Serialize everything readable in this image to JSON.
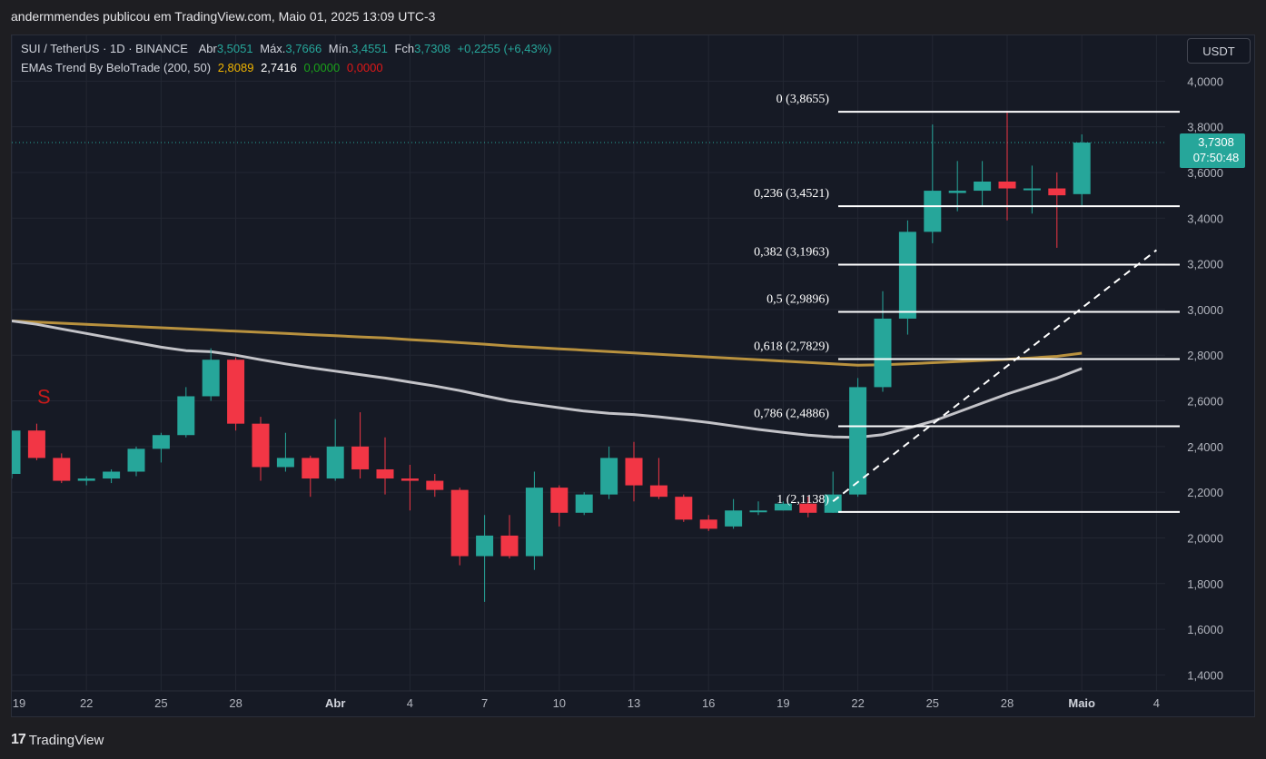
{
  "header": {
    "publish_text": "andermmendes publicou em TradingView.com, Maio 01, 2025 13:09 UTC-3"
  },
  "legend": {
    "symbol": "SUI / TetherUS · 1D · BINANCE",
    "open_label": "Abr",
    "open_value": "3,5051",
    "high_label": "Máx.",
    "high_value": "3,7666",
    "low_label": "Mín.",
    "low_value": "3,4551",
    "close_label": "Fch",
    "close_value": "3,7308",
    "change": "+0,2255 (+6,43%)",
    "indicator_name": "EMAs Trend By BeloTrade (200, 50)",
    "ema200_value": "2,8089",
    "ema50_value": "2,7416",
    "ind_val3": "0,0000",
    "ind_val4": "0,0000"
  },
  "currency_button": "USDT",
  "footer": {
    "brand": "TradingView",
    "logo_glyph": "17"
  },
  "colors": {
    "up": "#26a69a",
    "down": "#f23645",
    "ema200": "#b8913e",
    "ema50": "#c3c3c8",
    "fib": "#ffffff",
    "bg": "#161a25",
    "sell_marker": "#c81a1a"
  },
  "chart_data": {
    "type": "candlestick",
    "x_tick_labels": [
      "19",
      "22",
      "25",
      "28",
      "Abr",
      "4",
      "7",
      "10",
      "13",
      "16",
      "19",
      "22",
      "25",
      "28",
      "Maio",
      "4"
    ],
    "y_tick_labels": [
      "4,0000",
      "3,8000",
      "3,6000",
      "3,4000",
      "3,2000",
      "3,0000",
      "2,8000",
      "2,6000",
      "2,4000",
      "2,2000",
      "2,0000",
      "1,8000",
      "1,6000",
      "1,4000"
    ],
    "y_ticks": [
      4.0,
      3.8,
      3.6,
      3.4,
      3.2,
      3.0,
      2.8,
      2.6,
      2.4,
      2.2,
      2.0,
      1.8,
      1.6,
      1.4
    ],
    "ylim": [
      1.33,
      4.2
    ],
    "candles": [
      {
        "date": "Mar 19",
        "o": 2.28,
        "h": 2.47,
        "l": 2.26,
        "c": 2.47
      },
      {
        "date": "Mar 20",
        "o": 2.47,
        "h": 2.5,
        "l": 2.34,
        "c": 2.35
      },
      {
        "date": "Mar 21",
        "o": 2.35,
        "h": 2.37,
        "l": 2.24,
        "c": 2.25
      },
      {
        "date": "Mar 22",
        "o": 2.25,
        "h": 2.27,
        "l": 2.23,
        "c": 2.26
      },
      {
        "date": "Mar 23",
        "o": 2.26,
        "h": 2.3,
        "l": 2.24,
        "c": 2.29
      },
      {
        "date": "Mar 24",
        "o": 2.29,
        "h": 2.4,
        "l": 2.27,
        "c": 2.39
      },
      {
        "date": "Mar 25",
        "o": 2.39,
        "h": 2.46,
        "l": 2.33,
        "c": 2.45
      },
      {
        "date": "Mar 26",
        "o": 2.45,
        "h": 2.66,
        "l": 2.44,
        "c": 2.62
      },
      {
        "date": "Mar 27",
        "o": 2.62,
        "h": 2.83,
        "l": 2.6,
        "c": 2.78
      },
      {
        "date": "Mar 28",
        "o": 2.78,
        "h": 2.79,
        "l": 2.47,
        "c": 2.5
      },
      {
        "date": "Mar 29",
        "o": 2.5,
        "h": 2.53,
        "l": 2.25,
        "c": 2.31
      },
      {
        "date": "Mar 30",
        "o": 2.31,
        "h": 2.46,
        "l": 2.29,
        "c": 2.35
      },
      {
        "date": "Mar 31",
        "o": 2.35,
        "h": 2.36,
        "l": 2.18,
        "c": 2.26
      },
      {
        "date": "Apr 1",
        "o": 2.26,
        "h": 2.52,
        "l": 2.25,
        "c": 2.4
      },
      {
        "date": "Apr 2",
        "o": 2.4,
        "h": 2.55,
        "l": 2.26,
        "c": 2.3
      },
      {
        "date": "Apr 3",
        "o": 2.3,
        "h": 2.44,
        "l": 2.19,
        "c": 2.26
      },
      {
        "date": "Apr 4",
        "o": 2.26,
        "h": 2.32,
        "l": 2.12,
        "c": 2.25
      },
      {
        "date": "Apr 5",
        "o": 2.25,
        "h": 2.28,
        "l": 2.18,
        "c": 2.21
      },
      {
        "date": "Apr 6",
        "o": 2.21,
        "h": 2.22,
        "l": 1.88,
        "c": 1.92
      },
      {
        "date": "Apr 7",
        "o": 1.92,
        "h": 2.1,
        "l": 1.72,
        "c": 2.01
      },
      {
        "date": "Apr 8",
        "o": 2.01,
        "h": 2.1,
        "l": 1.91,
        "c": 1.92
      },
      {
        "date": "Apr 9",
        "o": 1.92,
        "h": 2.29,
        "l": 1.86,
        "c": 2.22
      },
      {
        "date": "Apr 10",
        "o": 2.22,
        "h": 2.23,
        "l": 2.05,
        "c": 2.11
      },
      {
        "date": "Apr 11",
        "o": 2.11,
        "h": 2.2,
        "l": 2.1,
        "c": 2.19
      },
      {
        "date": "Apr 12",
        "o": 2.19,
        "h": 2.4,
        "l": 2.17,
        "c": 2.35
      },
      {
        "date": "Apr 13",
        "o": 2.35,
        "h": 2.42,
        "l": 2.16,
        "c": 2.23
      },
      {
        "date": "Apr 14",
        "o": 2.23,
        "h": 2.35,
        "l": 2.17,
        "c": 2.18
      },
      {
        "date": "Apr 15",
        "o": 2.18,
        "h": 2.19,
        "l": 2.07,
        "c": 2.08
      },
      {
        "date": "Apr 16",
        "o": 2.08,
        "h": 2.1,
        "l": 2.03,
        "c": 2.04
      },
      {
        "date": "Apr 17",
        "o": 2.05,
        "h": 2.17,
        "l": 2.04,
        "c": 2.12
      },
      {
        "date": "Apr 18",
        "o": 2.12,
        "h": 2.16,
        "l": 2.1,
        "c": 2.12
      },
      {
        "date": "Apr 19",
        "o": 2.12,
        "h": 2.16,
        "l": 2.12,
        "c": 2.15
      },
      {
        "date": "Apr 20",
        "o": 2.15,
        "h": 2.18,
        "l": 2.09,
        "c": 2.11
      },
      {
        "date": "Apr 21",
        "o": 2.11,
        "h": 2.29,
        "l": 2.11,
        "c": 2.19
      },
      {
        "date": "Apr 22",
        "o": 2.19,
        "h": 2.7,
        "l": 2.18,
        "c": 2.66
      },
      {
        "date": "Apr 23",
        "o": 2.66,
        "h": 3.08,
        "l": 2.64,
        "c": 2.96
      },
      {
        "date": "Apr 24",
        "o": 2.96,
        "h": 3.39,
        "l": 2.89,
        "c": 3.34
      },
      {
        "date": "Apr 25",
        "o": 3.34,
        "h": 3.81,
        "l": 3.29,
        "c": 3.52
      },
      {
        "date": "Apr 26",
        "o": 3.51,
        "h": 3.65,
        "l": 3.43,
        "c": 3.52
      },
      {
        "date": "Apr 27",
        "o": 3.52,
        "h": 3.65,
        "l": 3.45,
        "c": 3.56
      },
      {
        "date": "Apr 28",
        "o": 3.56,
        "h": 3.87,
        "l": 3.39,
        "c": 3.53
      },
      {
        "date": "Apr 29",
        "o": 3.53,
        "h": 3.63,
        "l": 3.42,
        "c": 3.53
      },
      {
        "date": "Apr 30",
        "o": 3.53,
        "h": 3.6,
        "l": 3.27,
        "c": 3.5
      },
      {
        "date": "May 1",
        "o": 3.5051,
        "h": 3.7666,
        "l": 3.4551,
        "c": 3.7308
      }
    ],
    "ema200": [
      2.95,
      2.945,
      2.94,
      2.935,
      2.93,
      2.925,
      2.92,
      2.915,
      2.91,
      2.905,
      2.9,
      2.895,
      2.89,
      2.885,
      2.88,
      2.875,
      2.868,
      2.862,
      2.855,
      2.848,
      2.84,
      2.834,
      2.828,
      2.822,
      2.816,
      2.81,
      2.804,
      2.798,
      2.792,
      2.786,
      2.78,
      2.774,
      2.768,
      2.762,
      2.756,
      2.758,
      2.762,
      2.767,
      2.772,
      2.777,
      2.782,
      2.788,
      2.795,
      2.8089
    ],
    "ema50": [
      2.95,
      2.935,
      2.915,
      2.895,
      2.875,
      2.855,
      2.835,
      2.82,
      2.815,
      2.8,
      2.78,
      2.762,
      2.745,
      2.73,
      2.715,
      2.7,
      2.682,
      2.665,
      2.645,
      2.622,
      2.6,
      2.585,
      2.57,
      2.555,
      2.545,
      2.54,
      2.53,
      2.518,
      2.505,
      2.49,
      2.475,
      2.462,
      2.45,
      2.442,
      2.44,
      2.452,
      2.48,
      2.51,
      2.55,
      2.59,
      2.63,
      2.665,
      2.7,
      2.7416
    ],
    "fibonacci": [
      {
        "label": "0 (3,8655)",
        "value": 3.8655
      },
      {
        "label": "0,236 (3,4521)",
        "value": 3.4521
      },
      {
        "label": "0,382 (3,1963)",
        "value": 3.1963
      },
      {
        "label": "0,5 (2,9896)",
        "value": 2.9896
      },
      {
        "label": "0,618 (2,7829)",
        "value": 2.7829
      },
      {
        "label": "0,786 (2,4886)",
        "value": 2.4886
      },
      {
        "label": "1 (2,1138)",
        "value": 2.1138
      }
    ],
    "trend_line": {
      "from": {
        "date": "Apr 21",
        "value": 2.16
      },
      "to": {
        "date": "May 4",
        "value": 3.26
      }
    },
    "sell_marker": {
      "label": "S",
      "date": "Mar 20"
    },
    "last_price": {
      "value": 3.7308,
      "label": "3,7308",
      "countdown": "07:50:48"
    },
    "grid": true
  }
}
